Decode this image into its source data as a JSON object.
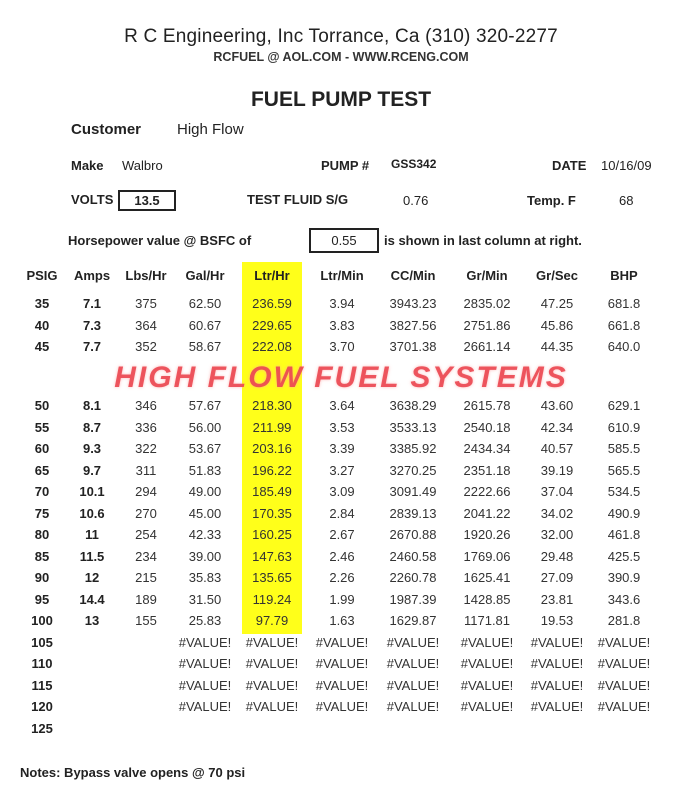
{
  "header": {
    "company": "R C Engineering, Inc  Torrance,  Ca  (310) 320-2277",
    "contact": "RCFUEL @ AOL.COM -  WWW.RCENG.COM",
    "title": "FUEL PUMP TEST"
  },
  "info": {
    "customer_label": "Customer",
    "customer": "High Flow",
    "make_label": "Make",
    "make": "Walbro",
    "pump_label": "PUMP #",
    "pump": "GSS342",
    "date_label": "DATE",
    "date": "10/16/09",
    "volts_label": "VOLTS",
    "volts": "13.5",
    "fluid_label": "TEST FLUID  S/G",
    "fluid_sg": "0.76",
    "temp_label": "Temp.  F",
    "temp": "68",
    "hp_label": "Horsepower value @  BSFC of",
    "bsfc": "0.55",
    "hp_note": "is shown in last column at right."
  },
  "watermark": "HIGH FLOW FUEL SYSTEMS",
  "highlight_color": "#ffff1a",
  "table": {
    "columns": [
      "PSIG",
      "Amps",
      "Lbs/Hr",
      "Gal/Hr",
      "Ltr/Hr",
      "Ltr/Min",
      "CC/Min",
      "Gr/Min",
      "Gr/Sec",
      "BHP"
    ],
    "rows": [
      [
        "35",
        "7.1",
        "375",
        "62.50",
        "236.59",
        "3.94",
        "3943.23",
        "2835.02",
        "47.25",
        "681.8"
      ],
      [
        "40",
        "7.3",
        "364",
        "60.67",
        "229.65",
        "3.83",
        "3827.56",
        "2751.86",
        "45.86",
        "661.8"
      ],
      [
        "45",
        "7.7",
        "352",
        "58.67",
        "222.08",
        "3.70",
        "3701.38",
        "2661.14",
        "44.35",
        "640.0"
      ],
      [
        "50",
        "8.1",
        "346",
        "57.67",
        "218.30",
        "3.64",
        "3638.29",
        "2615.78",
        "43.60",
        "629.1"
      ],
      [
        "55",
        "8.7",
        "336",
        "56.00",
        "211.99",
        "3.53",
        "3533.13",
        "2540.18",
        "42.34",
        "610.9"
      ],
      [
        "60",
        "9.3",
        "322",
        "53.67",
        "203.16",
        "3.39",
        "3385.92",
        "2434.34",
        "40.57",
        "585.5"
      ],
      [
        "65",
        "9.7",
        "311",
        "51.83",
        "196.22",
        "3.27",
        "3270.25",
        "2351.18",
        "39.19",
        "565.5"
      ],
      [
        "70",
        "10.1",
        "294",
        "49.00",
        "185.49",
        "3.09",
        "3091.49",
        "2222.66",
        "37.04",
        "534.5"
      ],
      [
        "75",
        "10.6",
        "270",
        "45.00",
        "170.35",
        "2.84",
        "2839.13",
        "2041.22",
        "34.02",
        "490.9"
      ],
      [
        "80",
        "11",
        "254",
        "42.33",
        "160.25",
        "2.67",
        "2670.88",
        "1920.26",
        "32.00",
        "461.8"
      ],
      [
        "85",
        "11.5",
        "234",
        "39.00",
        "147.63",
        "2.46",
        "2460.58",
        "1769.06",
        "29.48",
        "425.5"
      ],
      [
        "90",
        "12",
        "215",
        "35.83",
        "135.65",
        "2.26",
        "2260.78",
        "1625.41",
        "27.09",
        "390.9"
      ],
      [
        "95",
        "14.4",
        "189",
        "31.50",
        "119.24",
        "1.99",
        "1987.39",
        "1428.85",
        "23.81",
        "343.6"
      ],
      [
        "100",
        "13",
        "155",
        "25.83",
        "97.79",
        "1.63",
        "1629.87",
        "1171.81",
        "19.53",
        "281.8"
      ],
      [
        "105",
        "",
        "",
        "#VALUE!",
        "#VALUE!",
        "#VALUE!",
        "#VALUE!",
        "#VALUE!",
        "#VALUE!",
        "#VALUE!"
      ],
      [
        "110",
        "",
        "",
        "#VALUE!",
        "#VALUE!",
        "#VALUE!",
        "#VALUE!",
        "#VALUE!",
        "#VALUE!",
        "#VALUE!"
      ],
      [
        "115",
        "",
        "",
        "#VALUE!",
        "#VALUE!",
        "#VALUE!",
        "#VALUE!",
        "#VALUE!",
        "#VALUE!",
        "#VALUE!"
      ],
      [
        "120",
        "",
        "",
        "#VALUE!",
        "#VALUE!",
        "#VALUE!",
        "#VALUE!",
        "#VALUE!",
        "#VALUE!",
        "#VALUE!"
      ],
      [
        "125",
        "",
        "",
        "",
        "",
        "",
        "",
        "",
        "",
        ""
      ]
    ]
  },
  "notes": "Notes:  Bypass valve opens @ 70 psi"
}
